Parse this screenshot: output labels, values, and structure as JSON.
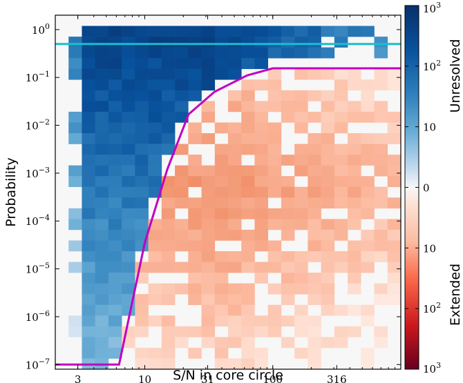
{
  "chart_data": {
    "type": "heatmap",
    "xlabel": "S/N in core circle",
    "ylabel": "Probability",
    "x_scale": "log",
    "y_scale": "log",
    "xlim": [
      2.0,
      1000
    ],
    "ylim": [
      8e-08,
      2.0
    ],
    "x_ticks": [
      {
        "value": 3,
        "label": "3"
      },
      {
        "value": 10,
        "label": "10"
      },
      {
        "value": 31,
        "label": "31"
      },
      {
        "value": 100,
        "label": "100"
      },
      {
        "value": 316,
        "label": "316"
      }
    ],
    "y_ticks": [
      {
        "exp": 0,
        "label": "10",
        "sup": "0"
      },
      {
        "exp": -1,
        "label": "10",
        "sup": "−1"
      },
      {
        "exp": -2,
        "label": "10",
        "sup": "−2"
      },
      {
        "exp": -3,
        "label": "10",
        "sup": "−3"
      },
      {
        "exp": -4,
        "label": "10",
        "sup": "−4"
      },
      {
        "exp": -5,
        "label": "10",
        "sup": "−5"
      },
      {
        "exp": -6,
        "label": "10",
        "sup": "−6"
      },
      {
        "exp": -7,
        "label": "10",
        "sup": "−7"
      }
    ],
    "colorbar": {
      "top_label": "Unresolved",
      "bottom_label": "Extended",
      "ticks": [
        {
          "label": "10",
          "sup": "3"
        },
        {
          "label": "10",
          "sup": "2"
        },
        {
          "label": "10",
          "sup": ""
        },
        {
          "label": "0",
          "sup": ""
        },
        {
          "label": "10",
          "sup": ""
        },
        {
          "label": "10",
          "sup": "2"
        },
        {
          "label": "10",
          "sup": "3"
        }
      ],
      "colors": {
        "unresolved": "#08306b",
        "zero": "#f7f7f7",
        "extended": "#67001f"
      }
    },
    "lines": [
      {
        "color": "#17becf",
        "y_value": 0.5,
        "points": [
          [
            2.0,
            0.5
          ],
          [
            1000,
            0.5
          ]
        ]
      },
      {
        "color": "#c000c0",
        "points": [
          [
            2.0,
            1e-07
          ],
          [
            6.3,
            1e-07
          ],
          [
            10,
            3.5e-05
          ],
          [
            15,
            0.0012
          ],
          [
            22,
            0.017
          ],
          [
            35,
            0.05
          ],
          [
            63,
            0.11
          ],
          [
            100,
            0.155
          ],
          [
            1000,
            0.155
          ]
        ]
      }
    ]
  }
}
